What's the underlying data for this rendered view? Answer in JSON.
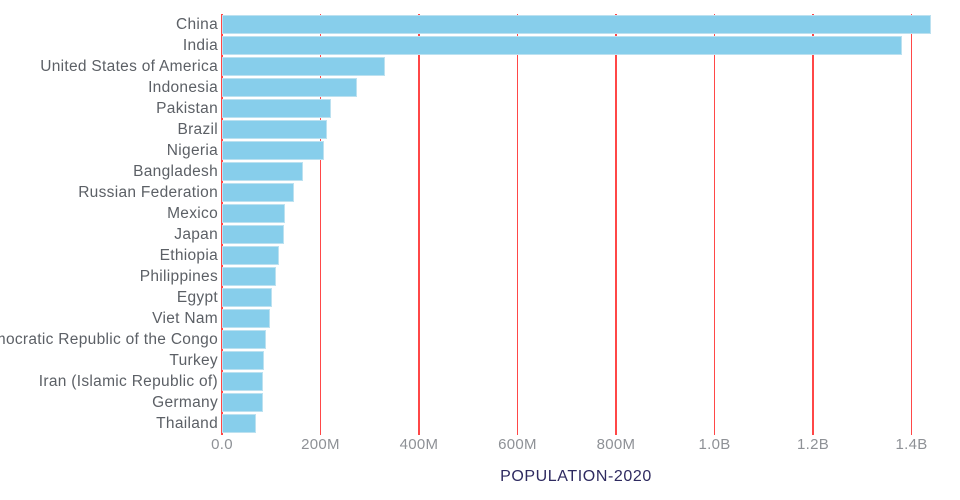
{
  "chart_data": {
    "type": "bar",
    "orientation": "horizontal",
    "title": "POPULATION-2020",
    "categories": [
      "China",
      "India",
      "United States of America",
      "Indonesia",
      "Pakistan",
      "Brazil",
      "Nigeria",
      "Bangladesh",
      "Russian Federation",
      "Mexico",
      "Japan",
      "Ethiopia",
      "Philippines",
      "Egypt",
      "Viet Nam",
      "Democratic Republic of the Congo",
      "Turkey",
      "Iran (Islamic Republic of)",
      "Germany",
      "Thailand"
    ],
    "values_millions": [
      1439.3,
      1380.0,
      331.0,
      273.5,
      220.9,
      212.6,
      206.1,
      164.7,
      145.9,
      128.9,
      126.5,
      115.0,
      109.6,
      102.3,
      97.3,
      89.6,
      84.3,
      84.0,
      83.8,
      69.8
    ],
    "x_axis": {
      "tick_values_millions": [
        0,
        200,
        400,
        600,
        800,
        1000,
        1200,
        1400
      ],
      "tick_labels": [
        "0.0",
        "200M",
        "400M",
        "600M",
        "800M",
        "1.0B",
        "1.2B",
        "1.4B"
      ],
      "range_millions": [
        0,
        1498
      ]
    },
    "y_axis": {
      "label_side": "left",
      "order": "descending"
    },
    "legend": "none",
    "grid": "vertical-red-lines",
    "colors": {
      "bar_fill": "#87CEEB",
      "bar_border": "#BCE1F0",
      "gridline": "#FF4747",
      "tick_label": "#8E9196",
      "category_label": "#5C6066",
      "title": "#2E2A60",
      "background": "#FFFFFF"
    }
  }
}
